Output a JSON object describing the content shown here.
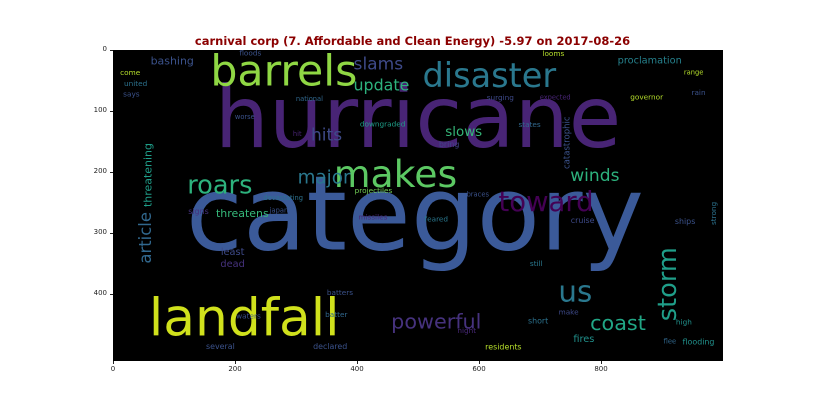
{
  "title": "carnival corp (7. Affordable and Clean Energy) -5.97 on 2017-08-26",
  "title_color": "#8b0000",
  "chart_data": {
    "type": "wordcloud",
    "background": "#000000",
    "xlim": [
      0,
      1000
    ],
    "ylim": [
      500,
      0
    ],
    "xticks": [
      0,
      200,
      400,
      600,
      800
    ],
    "yticks": [
      0,
      100,
      200,
      300,
      400
    ],
    "words": [
      {
        "text": "category",
        "x": 495,
        "y": 270,
        "size": 170,
        "color": "#3b5a99"
      },
      {
        "text": "hurricane",
        "x": 500,
        "y": 112,
        "size": 140,
        "color": "#482475"
      },
      {
        "text": "landfall",
        "x": 215,
        "y": 440,
        "size": 85,
        "color": "#d0e11c"
      },
      {
        "text": "barrels",
        "x": 280,
        "y": 35,
        "size": 70,
        "color": "#8fd744"
      },
      {
        "text": "disaster",
        "x": 617,
        "y": 42,
        "size": 55,
        "color": "#2a788e"
      },
      {
        "text": "makes",
        "x": 463,
        "y": 203,
        "size": 62,
        "color": "#5cc863"
      },
      {
        "text": "toward",
        "x": 710,
        "y": 250,
        "size": 45,
        "color": "#440154"
      },
      {
        "text": "roars",
        "x": 175,
        "y": 222,
        "size": 42,
        "color": "#2db27d"
      },
      {
        "text": "us",
        "x": 758,
        "y": 396,
        "size": 48,
        "color": "#2a788e"
      },
      {
        "text": "storm",
        "x": 910,
        "y": 384,
        "size": 42,
        "color": "#1f9e89"
      },
      {
        "text": "powerful",
        "x": 530,
        "y": 445,
        "size": 34,
        "color": "#46327e"
      },
      {
        "text": "coast",
        "x": 828,
        "y": 448,
        "size": 34,
        "color": "#21a685"
      },
      {
        "text": "major",
        "x": 346,
        "y": 210,
        "size": 30,
        "color": "#2a788e"
      },
      {
        "text": "winds",
        "x": 790,
        "y": 207,
        "size": 28,
        "color": "#2db27d"
      },
      {
        "text": "slams",
        "x": 435,
        "y": 24,
        "size": 28,
        "color": "#3e4a89"
      },
      {
        "text": "update",
        "x": 440,
        "y": 57,
        "size": 26,
        "color": "#2db27d"
      },
      {
        "text": "hits",
        "x": 350,
        "y": 140,
        "size": 28,
        "color": "#3e4a89"
      },
      {
        "text": "slows",
        "x": 575,
        "y": 135,
        "size": 22,
        "color": "#35b779"
      },
      {
        "text": "article",
        "x": 53,
        "y": 308,
        "size": 27,
        "color": "#31688e"
      },
      {
        "text": "threatening",
        "x": 57,
        "y": 205,
        "size": 18,
        "color": "#1f9e89"
      },
      {
        "text": "catastrophic",
        "x": 745,
        "y": 152,
        "size": 14,
        "color": "#3b528b"
      },
      {
        "text": "proclamation",
        "x": 880,
        "y": 18,
        "size": 16,
        "color": "#26828e"
      },
      {
        "text": "bashing",
        "x": 97,
        "y": 18,
        "size": 18,
        "color": "#3b528b"
      },
      {
        "text": "threatens",
        "x": 212,
        "y": 268,
        "size": 18,
        "color": "#35b779"
      },
      {
        "text": "least",
        "x": 196,
        "y": 332,
        "size": 16,
        "color": "#3e4a89"
      },
      {
        "text": "dead",
        "x": 196,
        "y": 352,
        "size": 16,
        "color": "#46327e"
      },
      {
        "text": "fires",
        "x": 772,
        "y": 475,
        "size": 16,
        "color": "#21918c"
      },
      {
        "text": "flooding",
        "x": 960,
        "y": 479,
        "size": 13,
        "color": "#21918c"
      },
      {
        "text": "strong",
        "x": 985,
        "y": 268,
        "size": 12,
        "color": "#2c728e"
      },
      {
        "text": "cruise",
        "x": 770,
        "y": 280,
        "size": 13,
        "color": "#3e4a89"
      },
      {
        "text": "ships",
        "x": 938,
        "y": 281,
        "size": 13,
        "color": "#3b528b"
      },
      {
        "text": "residents",
        "x": 640,
        "y": 487,
        "size": 13,
        "color": "#b5de2b"
      },
      {
        "text": "downgraded",
        "x": 442,
        "y": 121,
        "size": 12,
        "color": "#1f9e89"
      },
      {
        "text": "projectiles",
        "x": 427,
        "y": 230,
        "size": 12,
        "color": "#73d056"
      },
      {
        "text": "devastating",
        "x": 279,
        "y": 243,
        "size": 11,
        "color": "#2c728e"
      },
      {
        "text": "declared",
        "x": 356,
        "y": 486,
        "size": 13,
        "color": "#3b528b"
      },
      {
        "text": "several",
        "x": 176,
        "y": 486,
        "size": 13,
        "color": "#3b528b"
      },
      {
        "text": "batters",
        "x": 372,
        "y": 398,
        "size": 12,
        "color": "#3b528b"
      },
      {
        "text": "batter",
        "x": 366,
        "y": 434,
        "size": 12,
        "color": "#31688e"
      },
      {
        "text": "waters",
        "x": 222,
        "y": 436,
        "size": 12,
        "color": "#3b528b"
      },
      {
        "text": "night",
        "x": 580,
        "y": 460,
        "size": 12,
        "color": "#482878"
      },
      {
        "text": "short",
        "x": 697,
        "y": 444,
        "size": 13,
        "color": "#2c728e"
      },
      {
        "text": "make",
        "x": 747,
        "y": 430,
        "size": 12,
        "color": "#3e4a89"
      },
      {
        "text": "high",
        "x": 936,
        "y": 446,
        "size": 12,
        "color": "#21918c"
      },
      {
        "text": "flee",
        "x": 913,
        "y": 478,
        "size": 11,
        "color": "#31688e"
      },
      {
        "text": "still",
        "x": 694,
        "y": 350,
        "size": 12,
        "color": "#2a788e"
      },
      {
        "text": "missiles",
        "x": 426,
        "y": 274,
        "size": 12,
        "color": "#482878"
      },
      {
        "text": "feared",
        "x": 530,
        "y": 277,
        "size": 12,
        "color": "#2a788e"
      },
      {
        "text": "signs",
        "x": 140,
        "y": 265,
        "size": 13,
        "color": "#46327e"
      },
      {
        "text": "braces",
        "x": 598,
        "y": 237,
        "size": 11,
        "color": "#3b528b"
      },
      {
        "text": "japan",
        "x": 272,
        "y": 263,
        "size": 11,
        "color": "#3b528b"
      },
      {
        "text": "bring",
        "x": 551,
        "y": 155,
        "size": 13,
        "color": "#414487"
      },
      {
        "text": "states",
        "x": 683,
        "y": 122,
        "size": 12,
        "color": "#31688e"
      },
      {
        "text": "surging",
        "x": 635,
        "y": 78,
        "size": 12,
        "color": "#3e4a89"
      },
      {
        "text": "expected",
        "x": 725,
        "y": 78,
        "size": 11,
        "color": "#482475"
      },
      {
        "text": "governor",
        "x": 875,
        "y": 77,
        "size": 12,
        "color": "#b5de2b"
      },
      {
        "text": "rain",
        "x": 960,
        "y": 70,
        "size": 12,
        "color": "#3b528b"
      },
      {
        "text": "range",
        "x": 952,
        "y": 37,
        "size": 11,
        "color": "#b5de2b"
      },
      {
        "text": "looms",
        "x": 722,
        "y": 6,
        "size": 12,
        "color": "#b5de2b"
      },
      {
        "text": "floods",
        "x": 225,
        "y": 5,
        "size": 12,
        "color": "#3b528b"
      },
      {
        "text": "come",
        "x": 28,
        "y": 37,
        "size": 12,
        "color": "#b5de2b"
      },
      {
        "text": "united",
        "x": 37,
        "y": 55,
        "size": 12,
        "color": "#2c728e"
      },
      {
        "text": "says",
        "x": 30,
        "y": 72,
        "size": 12,
        "color": "#3b528b"
      },
      {
        "text": "national",
        "x": 322,
        "y": 80,
        "size": 11,
        "color": "#31688e"
      },
      {
        "text": "worse",
        "x": 216,
        "y": 110,
        "size": 11,
        "color": "#3b528b"
      },
      {
        "text": "hit",
        "x": 302,
        "y": 138,
        "size": 11,
        "color": "#482475"
      }
    ]
  }
}
